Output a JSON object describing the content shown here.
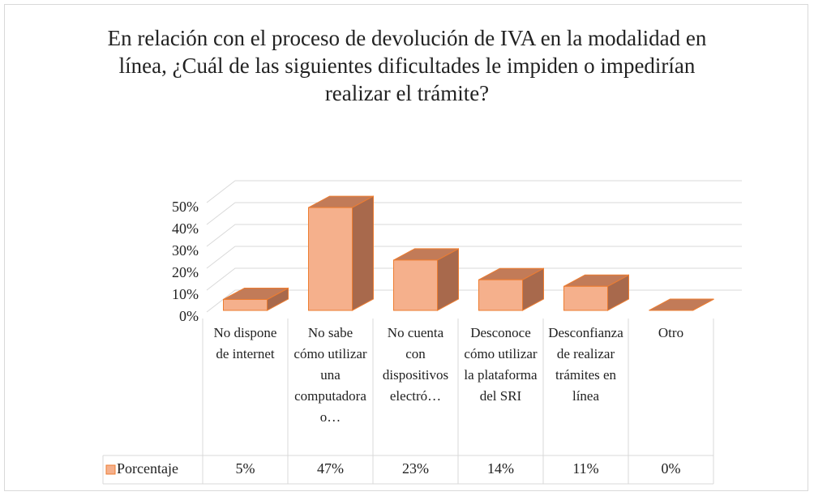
{
  "chart_data": {
    "type": "bar3d",
    "title": "En relación con el proceso de devolución de IVA en la modalidad en línea, ¿Cuál de las siguientes dificultades le impiden o impedirían realizar el trámite?",
    "categories": [
      "No dispone de internet",
      "No sabe cómo utilizar una computadora o…",
      "No cuenta con dispositivos electró…",
      "Desconoce cómo utilizar la plataforma del SRI",
      "Desconfianza de realizar trámites en línea",
      "Otro"
    ],
    "series": [
      {
        "name": "Porcentaje",
        "color": "#f5b08c",
        "values": [
          5,
          47,
          23,
          14,
          11,
          0
        ],
        "value_labels": [
          "5%",
          "47%",
          "23%",
          "14%",
          "11%",
          "0%"
        ]
      }
    ],
    "ylim": [
      0,
      50
    ],
    "yticks": [
      {
        "value": 0,
        "label": "0%"
      },
      {
        "value": 10,
        "label": "10%"
      },
      {
        "value": 20,
        "label": "20%"
      },
      {
        "value": 30,
        "label": "30%"
      },
      {
        "value": 40,
        "label": "40%"
      },
      {
        "value": 50,
        "label": "50%"
      }
    ],
    "grid": true,
    "legend": "data-table"
  }
}
